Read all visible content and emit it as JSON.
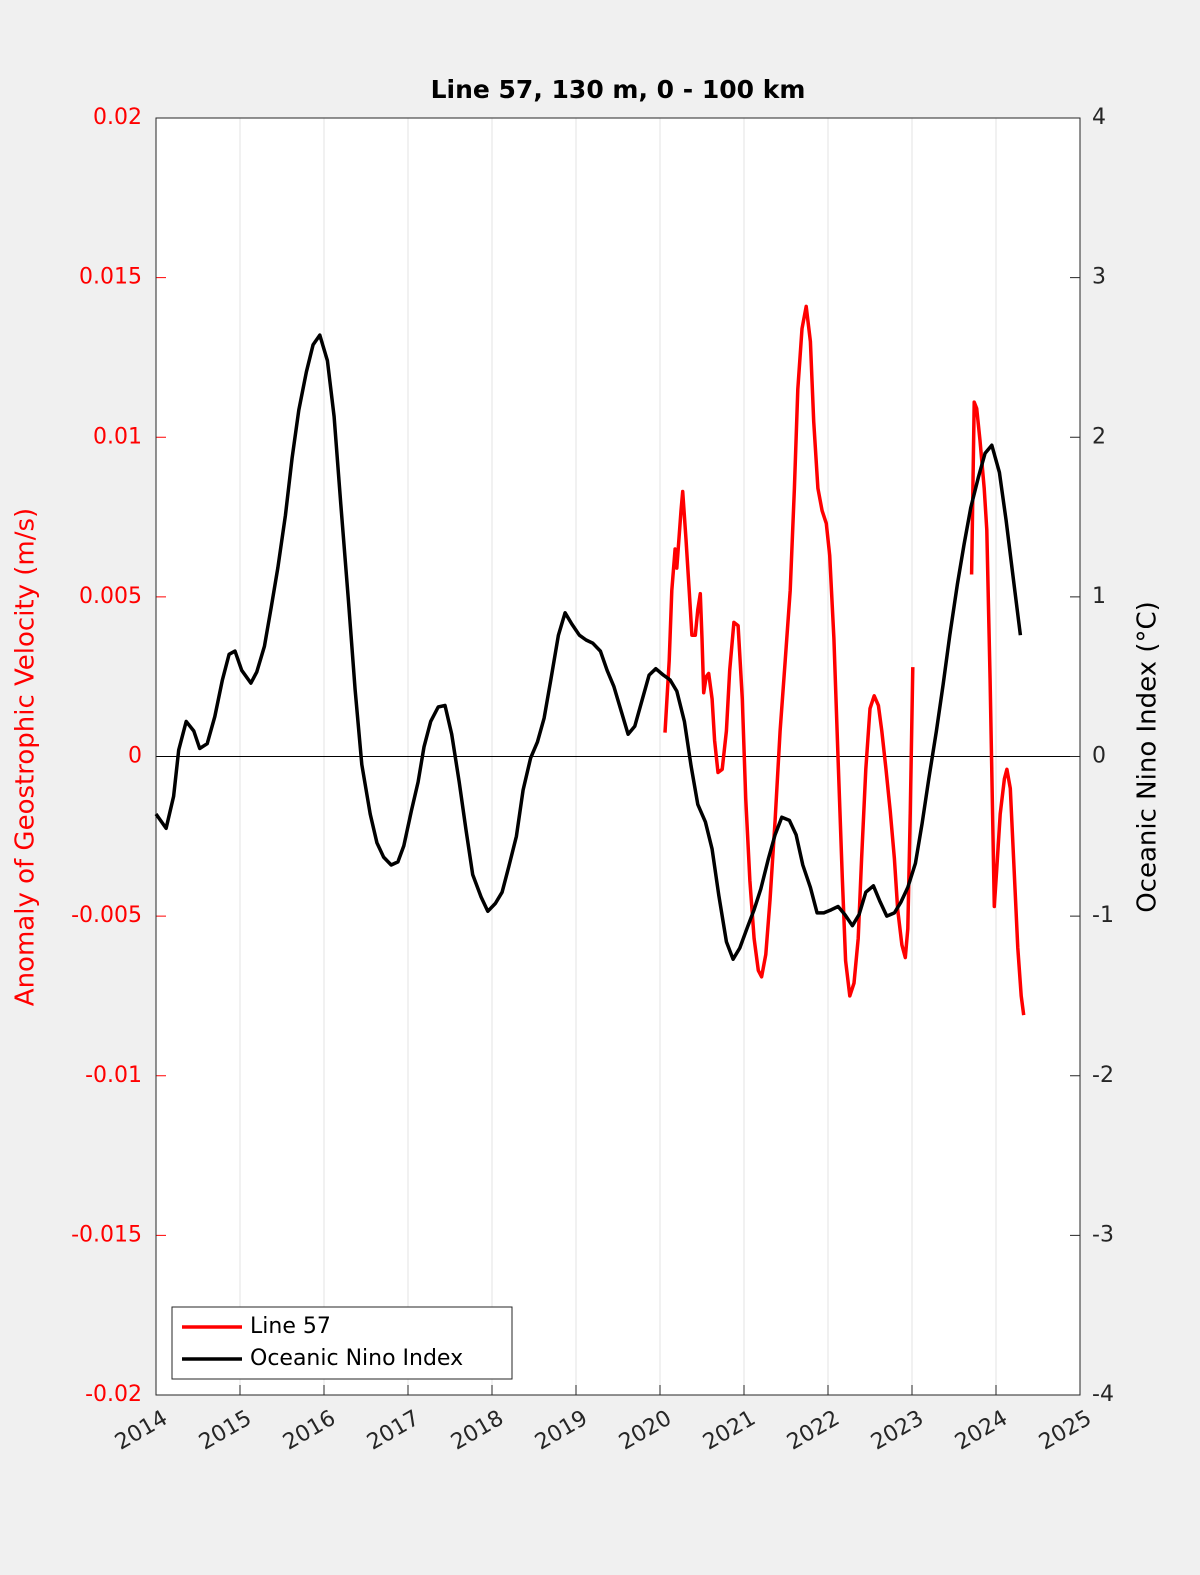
{
  "chart_data": {
    "type": "line",
    "title": "Line 57, 130 m, 0 - 100 km",
    "y_label": "Anomaly of Geostrophic Velocity (m/s)",
    "y2_label": "Oceanic Nino Index (°C)",
    "xlim": [
      2014,
      2025
    ],
    "xticks": [
      2014,
      2015,
      2016,
      2017,
      2018,
      2019,
      2020,
      2021,
      2022,
      2023,
      2024,
      2025
    ],
    "ylim": [
      -0.02,
      0.02
    ],
    "yticks": [
      -0.02,
      -0.015,
      -0.01,
      -0.005,
      0,
      0.005,
      0.01,
      0.015,
      0.02
    ],
    "y2lim": [
      -4,
      4
    ],
    "y2ticks": [
      -4,
      -3,
      -2,
      -1,
      0,
      1,
      2,
      3,
      4
    ],
    "xgrid": true,
    "legend": "lower left",
    "series": [
      {
        "name": "Line 57",
        "color": "#ff0000",
        "axis": "y",
        "x": [
          2020.06,
          2020.11,
          2020.14,
          2020.18,
          2020.2,
          2020.25,
          2020.27,
          2020.31,
          2020.35,
          2020.38,
          2020.42,
          2020.45,
          2020.48,
          2020.5,
          2020.52,
          2020.55,
          2020.58,
          2020.62,
          2020.65,
          2020.69,
          2020.74,
          2020.79,
          2020.83,
          2020.88,
          2020.93,
          2020.98,
          2021.02,
          2021.07,
          2021.12,
          2021.17,
          2021.21,
          2021.26,
          2021.31,
          2021.37,
          2021.43,
          2021.49,
          2021.55,
          2021.6,
          2021.64,
          2021.69,
          2021.74,
          2021.79,
          2021.83,
          2021.88,
          2021.93,
          2021.98,
          2022.02,
          2022.07,
          2022.12,
          2022.17,
          2022.21,
          2022.26,
          2022.31,
          2022.36,
          2022.4,
          2022.45,
          2022.5,
          2022.55,
          2022.6,
          2022.64,
          2022.69,
          2022.74,
          2022.79,
          2022.83,
          2022.88,
          2022.92,
          2022.95,
          2022.98,
          2023.01,
          2023.35,
          2023.71,
          2023.74,
          2023.77,
          2023.81,
          2023.86,
          2023.89,
          2023.93,
          2023.98,
          2024.01,
          2024.05,
          2024.1,
          2024.13,
          2024.17,
          2024.21,
          2024.26,
          2024.3,
          2024.33
        ],
        "values": [
          0.00075,
          0.003,
          0.0052,
          0.0065,
          0.0059,
          0.0077,
          0.0083,
          0.0068,
          0.0051,
          0.0038,
          0.0038,
          0.0046,
          0.0051,
          0.0037,
          0.002,
          0.0025,
          0.0026,
          0.0018,
          0.0005,
          -0.0005,
          -0.0004,
          0.0008,
          0.0027,
          0.0042,
          0.0041,
          0.0018,
          -0.0013,
          -0.0039,
          -0.0057,
          -0.0067,
          -0.0069,
          -0.0062,
          -0.0045,
          -0.002,
          0.0008,
          0.003,
          0.0052,
          0.0084,
          0.0115,
          0.0134,
          0.0141,
          0.013,
          0.0105,
          0.0084,
          0.0077,
          0.0073,
          0.0063,
          0.0037,
          -0.0001,
          -0.0038,
          -0.0064,
          -0.0075,
          -0.0071,
          -0.0057,
          -0.0032,
          -0.0004,
          0.0015,
          0.0019,
          0.0016,
          0.0008,
          -0.0004,
          -0.0017,
          -0.0032,
          -0.0048,
          -0.0059,
          -0.0063,
          -0.0054,
          -0.0017,
          0.0028,
          null,
          0.0057,
          0.0111,
          0.0109,
          0.0099,
          0.0084,
          0.0071,
          0.0024,
          -0.0047,
          -0.0035,
          -0.0018,
          -0.0007,
          -0.0004,
          -0.001,
          -0.0032,
          -0.006,
          -0.0075,
          -0.0081
        ]
      },
      {
        "name": "Oceanic Nino Index",
        "color": "#000000",
        "axis": "y2",
        "x": [
          2014.0,
          2014.12,
          2014.21,
          2014.27,
          2014.36,
          2014.45,
          2014.52,
          2014.61,
          2014.7,
          2014.79,
          2014.87,
          2014.94,
          2015.02,
          2015.13,
          2015.2,
          2015.29,
          2015.37,
          2015.45,
          2015.54,
          2015.62,
          2015.7,
          2015.79,
          2015.87,
          2015.95,
          2016.04,
          2016.12,
          2016.2,
          2016.29,
          2016.37,
          2016.45,
          2016.55,
          2016.63,
          2016.71,
          2016.8,
          2016.88,
          2016.95,
          2017.04,
          2017.12,
          2017.19,
          2017.27,
          2017.36,
          2017.44,
          2017.52,
          2017.61,
          2017.69,
          2017.77,
          2017.87,
          2017.95,
          2018.04,
          2018.12,
          2018.2,
          2018.29,
          2018.37,
          2018.46,
          2018.54,
          2018.62,
          2018.7,
          2018.79,
          2018.87,
          2018.95,
          2019.04,
          2019.12,
          2019.2,
          2019.29,
          2019.37,
          2019.45,
          2019.54,
          2019.62,
          2019.7,
          2019.79,
          2019.87,
          2019.95,
          2020.04,
          2020.12,
          2020.2,
          2020.29,
          2020.37,
          2020.45,
          2020.54,
          2020.62,
          2020.7,
          2020.79,
          2020.87,
          2020.95,
          2021.04,
          2021.12,
          2021.2,
          2021.29,
          2021.37,
          2021.45,
          2021.54,
          2021.62,
          2021.7,
          2021.79,
          2021.87,
          2021.95,
          2022.04,
          2022.12,
          2022.2,
          2022.29,
          2022.37,
          2022.45,
          2022.54,
          2022.62,
          2022.7,
          2022.79,
          2022.87,
          2022.95,
          2023.04,
          2023.12,
          2023.2,
          2023.29,
          2023.37,
          2023.45,
          2023.54,
          2023.62,
          2023.7,
          2023.79,
          2023.87,
          2023.95,
          2024.04,
          2024.12,
          2024.2,
          2024.29
        ],
        "values": [
          -0.36,
          -0.45,
          -0.25,
          0.04,
          0.22,
          0.16,
          0.05,
          0.08,
          0.25,
          0.48,
          0.64,
          0.66,
          0.54,
          0.46,
          0.53,
          0.69,
          0.93,
          1.18,
          1.51,
          1.87,
          2.17,
          2.41,
          2.58,
          2.64,
          2.48,
          2.13,
          1.58,
          0.98,
          0.42,
          -0.05,
          -0.36,
          -0.54,
          -0.63,
          -0.68,
          -0.66,
          -0.56,
          -0.34,
          -0.16,
          0.06,
          0.22,
          0.31,
          0.32,
          0.14,
          -0.16,
          -0.46,
          -0.74,
          -0.88,
          -0.97,
          -0.92,
          -0.85,
          -0.69,
          -0.5,
          -0.21,
          -0.01,
          0.09,
          0.24,
          0.48,
          0.76,
          0.9,
          0.83,
          0.76,
          0.73,
          0.71,
          0.66,
          0.54,
          0.44,
          0.28,
          0.14,
          0.19,
          0.36,
          0.51,
          0.55,
          0.51,
          0.48,
          0.41,
          0.22,
          -0.06,
          -0.3,
          -0.41,
          -0.58,
          -0.87,
          -1.16,
          -1.27,
          -1.2,
          -1.07,
          -0.96,
          -0.83,
          -0.64,
          -0.49,
          -0.38,
          -0.4,
          -0.49,
          -0.68,
          -0.82,
          -0.98,
          -0.98,
          -0.96,
          -0.94,
          -0.99,
          -1.06,
          -0.99,
          -0.85,
          -0.81,
          -0.91,
          -1.0,
          -0.98,
          -0.91,
          -0.82,
          -0.67,
          -0.42,
          -0.14,
          0.16,
          0.45,
          0.76,
          1.08,
          1.33,
          1.56,
          1.75,
          1.9,
          1.95,
          1.78,
          1.48,
          1.14,
          0.76
        ]
      }
    ]
  }
}
